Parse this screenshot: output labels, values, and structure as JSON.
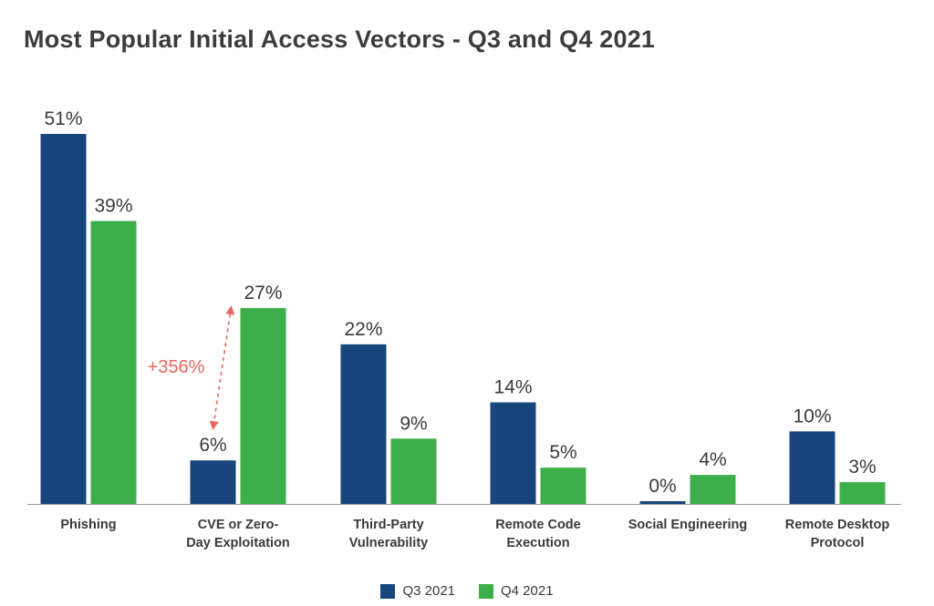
{
  "chart_data": {
    "type": "bar",
    "title": "Most Popular Initial Access Vectors - Q3 and Q4 2021",
    "categories": [
      [
        "Phishing"
      ],
      [
        "CVE or Zero-",
        "Day Exploitation"
      ],
      [
        "Third-Party",
        "Vulnerability"
      ],
      [
        "Remote Code",
        "Execution"
      ],
      [
        "Social Engineering"
      ],
      [
        "Remote Desktop",
        "Protocol"
      ]
    ],
    "series": [
      {
        "name": "Q3 2021",
        "color": "#17457c",
        "values": [
          51,
          6,
          22,
          14,
          0,
          10
        ],
        "labels": [
          "51%",
          "6%",
          "22%",
          "14%",
          "0%",
          "10%"
        ]
      },
      {
        "name": "Q4 2021",
        "color": "#3daf4a",
        "values": [
          39,
          27,
          9,
          5,
          4,
          3
        ],
        "labels": [
          "39%",
          "27%",
          "9%",
          "5%",
          "4%",
          "3%"
        ]
      }
    ],
    "ylim": [
      0,
      51
    ],
    "grid": false,
    "legend_position": "bottom-center",
    "annotation": {
      "text": "+356%",
      "category_index": 1,
      "from_value": 6,
      "to_value": 27,
      "color": "#e8675c"
    }
  }
}
